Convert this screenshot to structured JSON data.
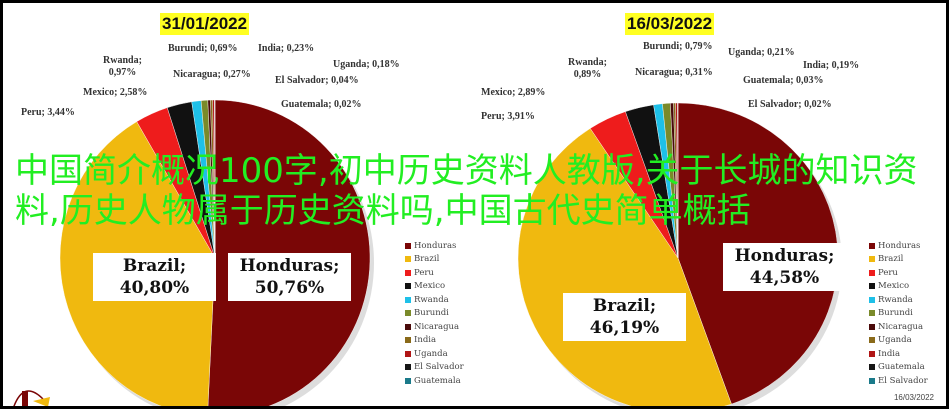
{
  "chart_data": [
    {
      "type": "pie",
      "title": "31/01/2022",
      "categories": [
        "Honduras",
        "Brazil",
        "Peru",
        "Mexico",
        "Rwanda",
        "Burundi",
        "Nicaragua",
        "India",
        "Uganda",
        "El Salvador",
        "Guatemala"
      ],
      "values": [
        50.76,
        40.8,
        3.44,
        2.58,
        0.97,
        0.69,
        0.27,
        0.23,
        0.18,
        0.04,
        0.02
      ],
      "labels": [
        "Honduras; 50,76%",
        "Brazil; 40,80%",
        "Peru; 3,44%",
        "Mexico; 2,58%",
        "Rwanda; 0,97%",
        "Burundi; 0,69%",
        "Nicaragua; 0,27%",
        "India; 0,23%",
        "Uganda; 0,18%",
        "El Salvador; 0,04%",
        "Guatemala; 0,02%"
      ],
      "legend": "right"
    },
    {
      "type": "pie",
      "title": "16/03/2022",
      "categories": [
        "Honduras",
        "Brazil",
        "Peru",
        "Mexico",
        "Rwanda",
        "Burundi",
        "Nicaragua",
        "Uganda",
        "India",
        "Guatemala",
        "El Salvador"
      ],
      "values": [
        44.58,
        46.19,
        3.91,
        2.89,
        0.89,
        0.79,
        0.31,
        0.21,
        0.19,
        0.03,
        0.02
      ],
      "labels": [
        "Honduras; 44,58%",
        "Brazil; 46,19%",
        "Peru; 3,91%",
        "Mexico; 2,89%",
        "Rwanda; 0,89%",
        "Burundi; 0,79%",
        "Nicaragua; 0,31%",
        "Uganda; 0,21%",
        "India; 0,19%",
        "Guatemala; 0,03%",
        "El Salvador; 0,02%"
      ],
      "legend": "right"
    }
  ],
  "colors": [
    "#7a0606",
    "#f0b90f",
    "#ee1c1c",
    "#111111",
    "#1ec0e8",
    "#7a8a2a",
    "#4a0a0a",
    "#8a6a1a",
    "#b01515",
    "#151515",
    "#1a7a8a"
  ],
  "overlay_text": "中国简介概况100字,初中历史资料人教版,关于长城的知识资料,历史人物属于历史资料吗,中国古代史简单概括",
  "footer_date": "16/03/2022"
}
